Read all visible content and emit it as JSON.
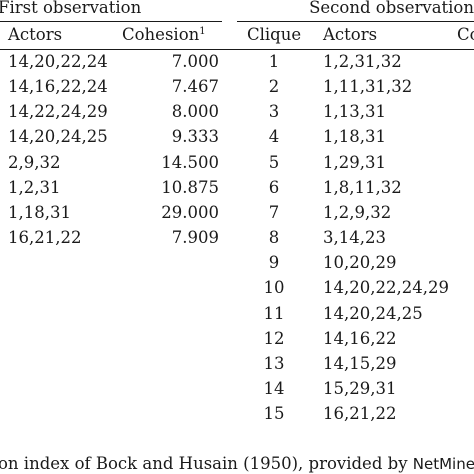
{
  "table": {
    "first_group": {
      "title": "First observation",
      "col_actors": "Actors",
      "col_cohesion": "Cohesion",
      "col_cohesion_sup": "1",
      "rows": [
        {
          "actors": "14,20,22,24",
          "cohesion": "7.000"
        },
        {
          "actors": "14,16,22,24",
          "cohesion": "7.467"
        },
        {
          "actors": "14,22,24,29",
          "cohesion": "8.000"
        },
        {
          "actors": "14,20,24,25",
          "cohesion": "9.333"
        },
        {
          "actors": "2,9,32",
          "cohesion": "14.500"
        },
        {
          "actors": "1,2,31",
          "cohesion": "10.875"
        },
        {
          "actors": "1,18,31",
          "cohesion": "29.000"
        },
        {
          "actors": "16,21,22",
          "cohesion": "7.909"
        }
      ]
    },
    "second_group": {
      "title": "Second observation",
      "col_clique": "Clique",
      "col_actors": "Actors",
      "col_cut": "Co",
      "rows": [
        {
          "clique": "1",
          "actors": "1,2,31,32"
        },
        {
          "clique": "2",
          "actors": "1,11,31,32"
        },
        {
          "clique": "3",
          "actors": "1,13,31"
        },
        {
          "clique": "4",
          "actors": "1,18,31"
        },
        {
          "clique": "5",
          "actors": "1,29,31"
        },
        {
          "clique": "6",
          "actors": "1,8,11,32"
        },
        {
          "clique": "7",
          "actors": "1,2,9,32"
        },
        {
          "clique": "8",
          "actors": "3,14,23"
        },
        {
          "clique": "9",
          "actors": "10,20,29"
        },
        {
          "clique": "10",
          "actors": "14,20,22,24,29"
        },
        {
          "clique": "11",
          "actors": "14,20,24,25"
        },
        {
          "clique": "12",
          "actors": "14,16,22"
        },
        {
          "clique": "13",
          "actors": "14,15,29"
        },
        {
          "clique": "14",
          "actors": "15,29,31"
        },
        {
          "clique": "15",
          "actors": "16,21,22"
        }
      ]
    },
    "footnote": {
      "prefix": "on index of Bock and Husain (1950), provided by ",
      "software": "NetMiner",
      "suffix": "."
    }
  }
}
